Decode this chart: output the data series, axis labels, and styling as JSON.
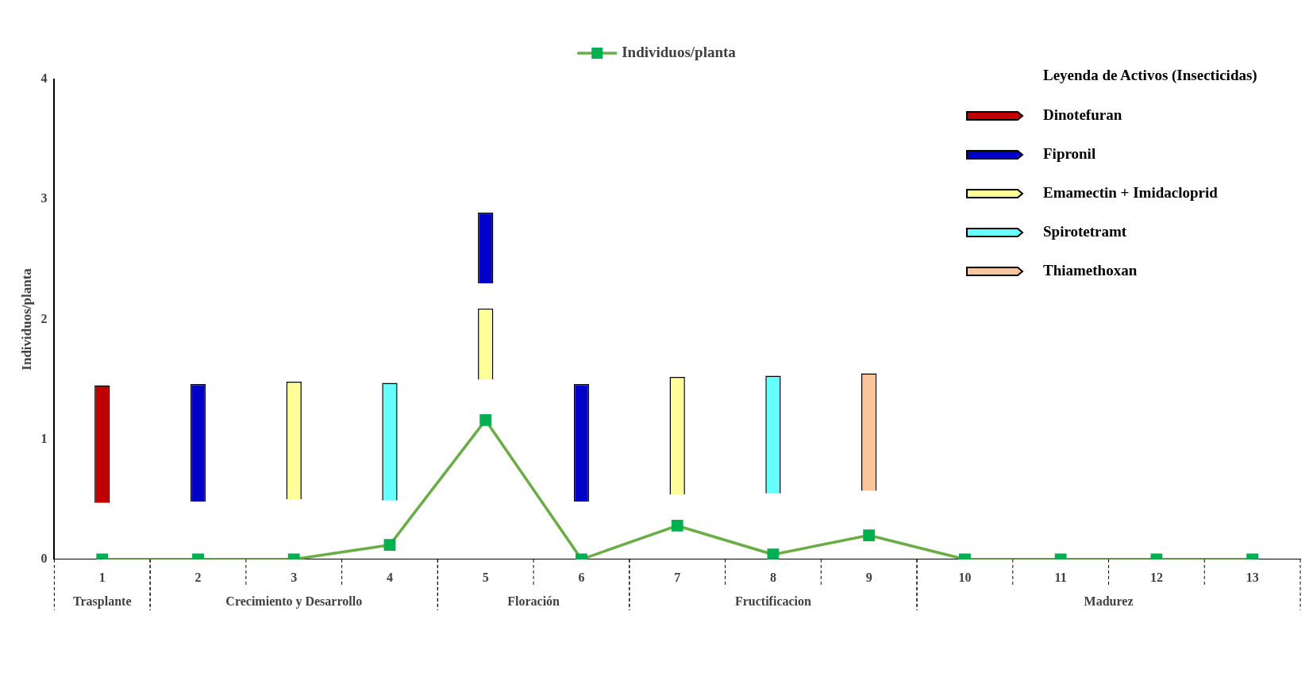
{
  "chart_data": {
    "type": "line",
    "ylabel": "Individuos/planta",
    "categories": [
      "1",
      "2",
      "3",
      "4",
      "5",
      "6",
      "7",
      "8",
      "9",
      "10",
      "11",
      "12",
      "13"
    ],
    "ylim": [
      0,
      4
    ],
    "yticks": [
      0,
      1,
      2,
      3,
      4
    ],
    "grid": false,
    "legend": "top right",
    "legend_title": "Leyenda de Activos (Insecticidas)",
    "marker": "square",
    "series": [
      {
        "name": "Individuos/planta",
        "color": "#6aac46",
        "values": [
          0,
          0,
          0,
          0.12,
          1.16,
          0,
          0.28,
          0.04,
          0.2,
          0,
          0,
          0,
          0
        ]
      },
      {
        "name": "Dinotefuran",
        "type": "bar",
        "color": "#c00000",
        "values": [
          0.98,
          null,
          null,
          null,
          null,
          null,
          null,
          null,
          null,
          null,
          null,
          null,
          null
        ],
        "base": [
          0.47,
          null,
          null,
          null,
          null,
          null,
          null,
          null,
          null,
          null,
          null,
          null,
          null
        ]
      },
      {
        "name": "Fipronil",
        "type": "bar",
        "color": "#0000c8",
        "values": [
          null,
          0.98,
          null,
          null,
          0.59,
          0.98,
          null,
          null,
          null,
          null,
          null,
          null,
          null
        ],
        "base": [
          null,
          0.48,
          null,
          null,
          2.3,
          0.48,
          null,
          null,
          null,
          null,
          null,
          null,
          null
        ]
      },
      {
        "name": "Emamectin + Imidacloprid",
        "type": "bar",
        "color": "#ffff99",
        "values": [
          null,
          null,
          0.98,
          null,
          0.59,
          null,
          0.98,
          null,
          null,
          null,
          null,
          null,
          null
        ],
        "base": [
          null,
          null,
          0.5,
          null,
          1.5,
          null,
          0.54,
          null,
          null,
          null,
          null,
          null,
          null
        ]
      },
      {
        "name": "Spirotetramt",
        "type": "bar",
        "color": "#66ffff",
        "values": [
          null,
          null,
          null,
          0.98,
          null,
          null,
          null,
          0.98,
          null,
          null,
          null,
          null,
          null
        ],
        "base": [
          null,
          null,
          null,
          0.49,
          null,
          null,
          null,
          0.55,
          null,
          null,
          null,
          null,
          null
        ]
      },
      {
        "name": "Thiamethoxan",
        "type": "bar",
        "color": "#fbc59c",
        "values": [
          null,
          null,
          null,
          null,
          null,
          null,
          null,
          null,
          0.98,
          null,
          null,
          null,
          null
        ],
        "base": [
          null,
          null,
          null,
          null,
          null,
          null,
          null,
          null,
          0.57,
          null,
          null,
          null,
          null
        ]
      }
    ],
    "annotations": [
      "Trasplante",
      "Crecimiento y Desarrollo",
      "Floración",
      "Fructificacion",
      "Madurez"
    ]
  }
}
